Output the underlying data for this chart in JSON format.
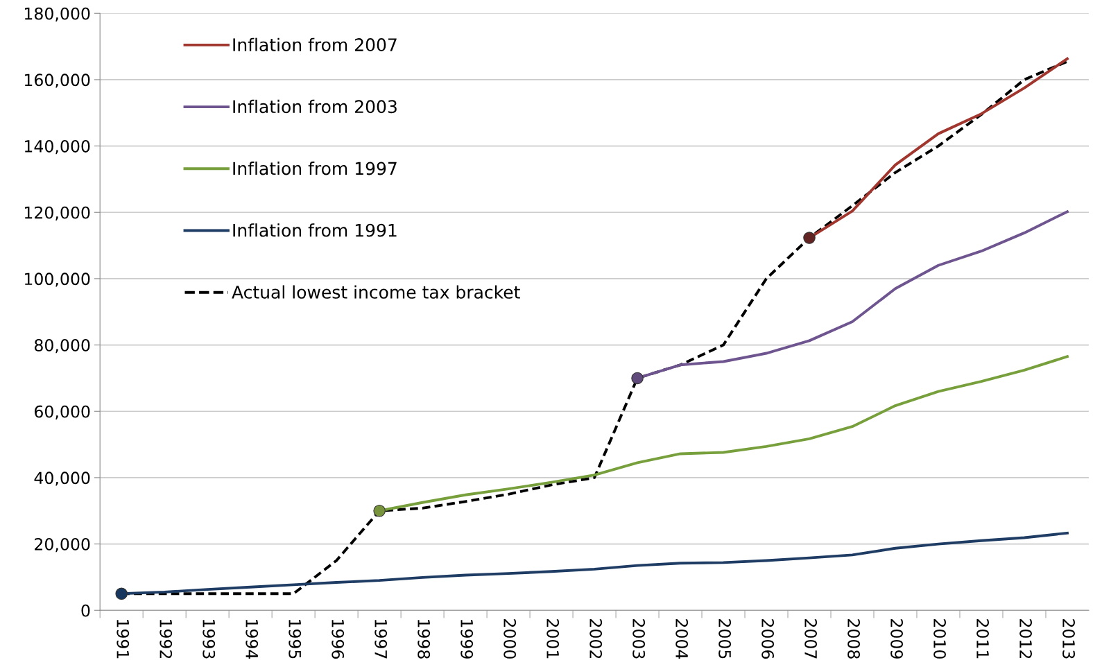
{
  "chart_data": {
    "type": "line",
    "categories": [
      "1991",
      "1992",
      "1993",
      "1994",
      "1995",
      "1996",
      "1997",
      "1998",
      "1999",
      "2000",
      "2001",
      "2002",
      "2003",
      "2004",
      "2005",
      "2006",
      "2007",
      "2008",
      "2009",
      "2010",
      "2011",
      "2012",
      "2013"
    ],
    "series": [
      {
        "name": "Inflation from 2007",
        "color": "#a0362e",
        "line_style": "solid",
        "values": [
          null,
          null,
          null,
          null,
          null,
          null,
          null,
          null,
          null,
          null,
          null,
          null,
          null,
          null,
          null,
          null,
          112300,
          120400,
          134300,
          143700,
          149700,
          157500,
          166300
        ]
      },
      {
        "name": "Inflation from 2003",
        "color": "#6f5590",
        "line_style": "solid",
        "values": [
          null,
          null,
          null,
          null,
          null,
          null,
          null,
          null,
          null,
          null,
          null,
          null,
          70000,
          74000,
          75000,
          77500,
          81300,
          87000,
          97000,
          104000,
          108300,
          113800,
          120200
        ]
      },
      {
        "name": "Inflation from 1997",
        "color": "#77a03c",
        "line_style": "solid",
        "values": [
          null,
          null,
          null,
          null,
          null,
          null,
          30000,
          32500,
          34800,
          36600,
          38600,
          40800,
          44500,
          47200,
          47600,
          49400,
          51700,
          55400,
          61700,
          66000,
          69000,
          72400,
          76500
        ]
      },
      {
        "name": "Inflation from 1991",
        "color": "#1f3d64",
        "line_style": "solid",
        "values": [
          5000,
          5500,
          6300,
          7000,
          7700,
          8400,
          9000,
          9900,
          10600,
          11100,
          11700,
          12400,
          13500,
          14200,
          14400,
          15000,
          15800,
          16700,
          18700,
          20000,
          21000,
          21900,
          23300
        ]
      },
      {
        "name": "Actual lowest income tax bracket",
        "color": "#000000",
        "line_style": "dashed",
        "values": [
          5000,
          5000,
          5000,
          5000,
          5000,
          15000,
          30000,
          30800,
          32800,
          35000,
          37800,
          40000,
          70000,
          74000,
          80000,
          100000,
          112300,
          122000,
          132000,
          140000,
          149500,
          160000,
          165500
        ]
      },
      {
        "type": "scatter",
        "marker": "circle",
        "colors": [
          "#17375e",
          null,
          null,
          null,
          null,
          null,
          "#77933c",
          null,
          null,
          null,
          null,
          null,
          "#604a7b",
          null,
          null,
          null,
          "#632523",
          null,
          null,
          null,
          null,
          null,
          null
        ],
        "values": [
          5000,
          null,
          null,
          null,
          null,
          null,
          30000,
          null,
          null,
          null,
          null,
          null,
          70000,
          null,
          null,
          null,
          112300,
          null,
          null,
          null,
          null,
          null,
          null
        ]
      }
    ],
    "ylim": [
      0,
      180000
    ],
    "yticks": [
      {
        "value": 0,
        "label": "0"
      },
      {
        "value": 20000,
        "label": "20,000"
      },
      {
        "value": 40000,
        "label": "40,000"
      },
      {
        "value": 60000,
        "label": "60,000"
      },
      {
        "value": 80000,
        "label": "80,000"
      },
      {
        "value": 100000,
        "label": "100,000"
      },
      {
        "value": 120000,
        "label": "120,000"
      },
      {
        "value": 140000,
        "label": "140,000"
      },
      {
        "value": 160000,
        "label": "160,000"
      },
      {
        "value": 180000,
        "label": "180,000"
      }
    ],
    "grid": "y",
    "legend": "top left"
  }
}
